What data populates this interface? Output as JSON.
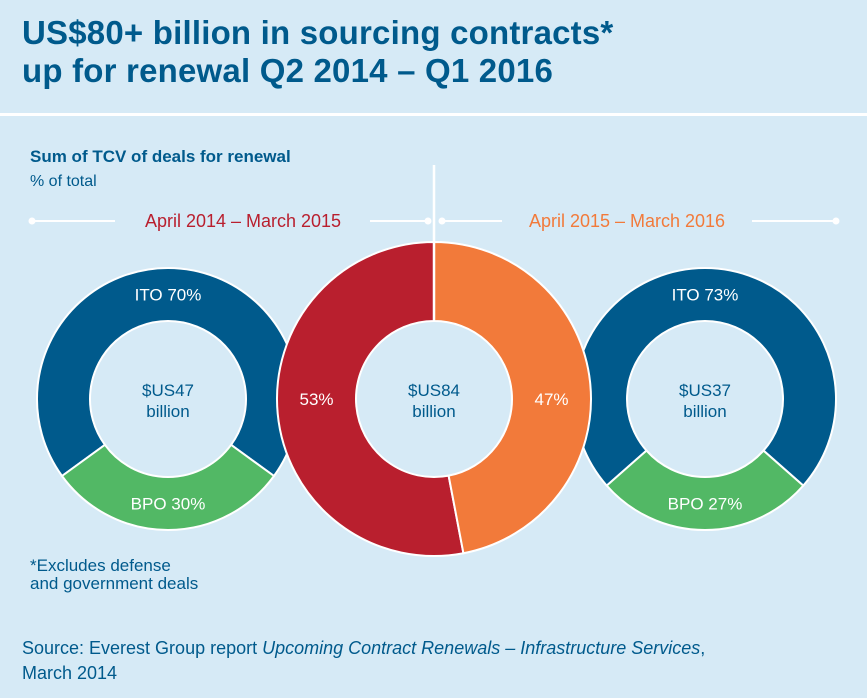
{
  "header": {
    "title_line1": "US$80+ billion in sourcing contracts*",
    "title_line2": "up for renewal Q2 2014 – Q1 2016"
  },
  "chart_data": {
    "type": "pie",
    "title": "Sum of TCV of deals for renewal",
    "unit": "% of total",
    "periods": [
      {
        "label": "April 2014 – March 2015",
        "color": "#b91f2e"
      },
      {
        "label": "April 2015 – March 2016",
        "color": "#f27a3a"
      }
    ],
    "total": {
      "center_line1": "$US84",
      "center_line2": "billion",
      "slices": [
        {
          "name": "April 2014 – March 2015",
          "value": 53,
          "label": "53%",
          "color": "#b91f2e"
        },
        {
          "name": "April 2015 – March 2016",
          "value": 47,
          "label": "47%",
          "color": "#f27a3a"
        }
      ]
    },
    "left": {
      "center_line1": "$US47",
      "center_line2": "billion",
      "slices": [
        {
          "name": "ITO",
          "value": 70,
          "label": "ITO 70%",
          "color": "#005a8c"
        },
        {
          "name": "BPO",
          "value": 30,
          "label": "BPO 30%",
          "color": "#52b865"
        }
      ]
    },
    "right": {
      "center_line1": "$US37",
      "center_line2": "billion",
      "slices": [
        {
          "name": "ITO",
          "value": 73,
          "label": "ITO 73%",
          "color": "#005a8c"
        },
        {
          "name": "BPO",
          "value": 27,
          "label": "BPO 27%",
          "color": "#52b865"
        }
      ]
    }
  },
  "footnote": {
    "line1": "*Excludes defense",
    "line2": "and government deals"
  },
  "source": {
    "prefix": "Source: Everest Group report ",
    "report_title": "Upcoming Contract Renewals – Infrastructure Services",
    "suffix": ",",
    "line2": "March 2014"
  }
}
